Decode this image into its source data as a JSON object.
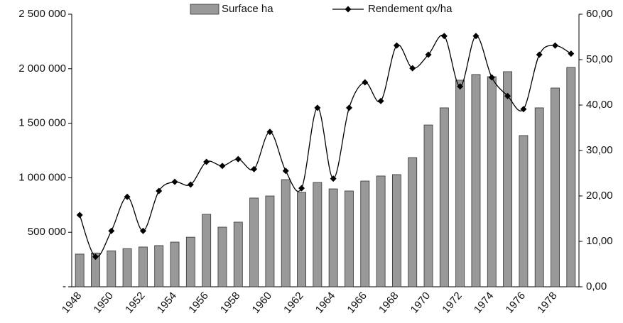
{
  "chart_data": {
    "type": "bar",
    "legend": "top",
    "categories": [
      "1948",
      null,
      "1950",
      null,
      "1952",
      null,
      "1954",
      null,
      "1956",
      null,
      "1958",
      null,
      "1960",
      null,
      "1962",
      null,
      "1964",
      null,
      "1966",
      null,
      "1968",
      null,
      "1970",
      null,
      "1972",
      null,
      "1974",
      null,
      "1976",
      null,
      "1978",
      null
    ],
    "series": [
      {
        "name": "Surface ha",
        "type": "bar",
        "axis": "y",
        "color": "#999999",
        "values": [
          300000,
          310000,
          330000,
          350000,
          365000,
          378000,
          410000,
          455000,
          665000,
          547000,
          593000,
          814000,
          833000,
          983000,
          866000,
          957000,
          898000,
          879000,
          970000,
          1016000,
          1029000,
          1185000,
          1484000,
          1641000,
          1895000,
          1947000,
          1927000,
          1973000,
          1387000,
          1641000,
          1823000,
          2012000
        ]
      },
      {
        "name": "Rendement qx/ha",
        "type": "line",
        "axis": "y2",
        "color": "#000000",
        "values": [
          15.8,
          6.6,
          12.3,
          19.8,
          12.3,
          21.1,
          23.1,
          22.5,
          27.5,
          26.6,
          28.1,
          25.9,
          34.1,
          25.5,
          21.7,
          39.4,
          23.8,
          39.4,
          45.0,
          40.9,
          53.1,
          48.1,
          51.1,
          55.2,
          44.1,
          55.2,
          46.1,
          42.0,
          39.1,
          51.1,
          53.1,
          51.3
        ]
      }
    ],
    "ylim": [
      0,
      2500000
    ],
    "yticks": [
      {
        "value": 0,
        "label": "-"
      },
      {
        "value": 500000,
        "label": "500 000"
      },
      {
        "value": 1000000,
        "label": "1 000 000"
      },
      {
        "value": 1500000,
        "label": "1 500 000"
      },
      {
        "value": 2000000,
        "label": "2 000 000"
      },
      {
        "value": 2500000,
        "label": "2 500 000"
      }
    ],
    "y2lim": [
      0,
      60
    ],
    "y2ticks": [
      {
        "value": 0,
        "label": "0,00"
      },
      {
        "value": 10,
        "label": "10,00"
      },
      {
        "value": 20,
        "label": "20,00"
      },
      {
        "value": 30,
        "label": "30,00"
      },
      {
        "value": 40,
        "label": "40,00"
      },
      {
        "value": 50,
        "label": "50,00"
      },
      {
        "value": 60,
        "label": "60,00"
      }
    ]
  }
}
